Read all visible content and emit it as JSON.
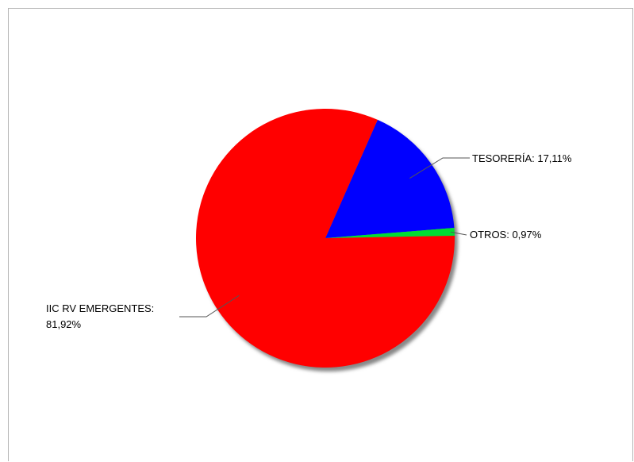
{
  "chart_data": {
    "type": "pie",
    "slices": [
      {
        "label": "TESORERÍA: 17,11%",
        "value": 17.11,
        "color": "#0000ff"
      },
      {
        "label": "OTROS: 0,97%",
        "value": 0.97,
        "color": "#00dd33"
      },
      {
        "label_lines": [
          "IIC RV EMERGENTES:",
          "81,92%"
        ],
        "value": 81.92,
        "color": "#ff0000"
      }
    ]
  }
}
